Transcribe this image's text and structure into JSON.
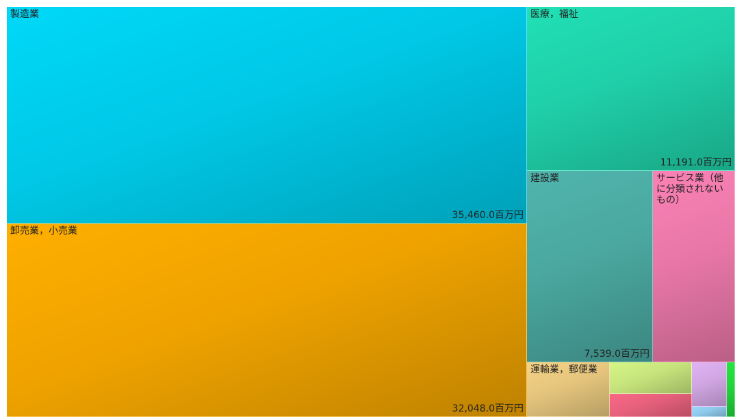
{
  "chart_data": {
    "type": "treemap",
    "unit": "百万円",
    "items": [
      {
        "label": "製造業",
        "value": 35460.0,
        "value_text": "35,460.0百万円",
        "color": "#00c8e6"
      },
      {
        "label": "卸売業，小売業",
        "value": 32048.0,
        "value_text": "32,048.0百万円",
        "color": "#eea200"
      },
      {
        "label": "医療，福祉",
        "value": 11191.0,
        "value_text": "11,191.0百万円",
        "color": "#1fcfa8"
      },
      {
        "label": "建設業",
        "value": 7539.0,
        "value_text": "7,539.0百万円",
        "color": "#4aa8a0"
      },
      {
        "label": "サービス業（他に分類されないもの）",
        "value": null,
        "value_text": "",
        "color": "#e877a8"
      },
      {
        "label": "運輸業，郵便業",
        "value": null,
        "value_text": "",
        "color": "#e4c47c"
      },
      {
        "label": "",
        "value": null,
        "value_text": "",
        "color": "#c6e47c"
      },
      {
        "label": "",
        "value": null,
        "value_text": "",
        "color": "#e6607c"
      },
      {
        "label": "",
        "value": null,
        "value_text": "",
        "color": "#d0a6e2"
      },
      {
        "label": "",
        "value": null,
        "value_text": "",
        "color": "#8ec8ea"
      },
      {
        "label": "",
        "value": null,
        "value_text": "",
        "color": "#22d43c"
      }
    ]
  }
}
